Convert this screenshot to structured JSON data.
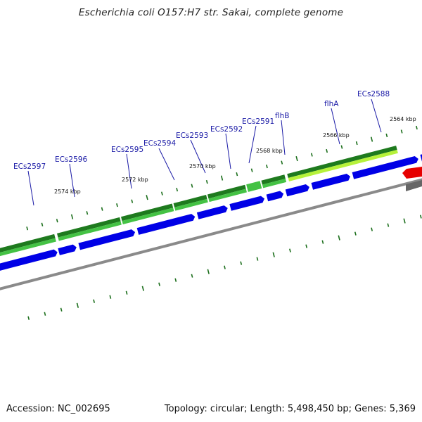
{
  "title": "Escherichia coli O157:H7 str. Sakai, complete genome",
  "footer": {
    "accession": "Accession: NC_002695",
    "stats": "Topology: circular; Length: 5,498,450 bp; Genes: 5,369"
  },
  "gene_labels": [
    "ECs2597",
    "ECs2596",
    "ECs2595",
    "ECs2594",
    "ECs2593",
    "ECs2592",
    "ECs2591",
    "flhB",
    "flhA",
    "ECs2588"
  ],
  "kbp_labels": [
    "2574 kbp",
    "2572 kbp",
    "2570 kbp",
    "2568 kbp",
    "2566 kbp",
    "2564 kbp"
  ],
  "colors": {
    "cds": "#0000e6",
    "gene_dark": "#1e7a1e",
    "gene_light": "#44c244",
    "gene_lime": "#b6f23a",
    "highlight": "#e60000",
    "backbone": "#8a8a8a",
    "tick": "#1b6e1b",
    "label": "#1a1aa6"
  }
}
